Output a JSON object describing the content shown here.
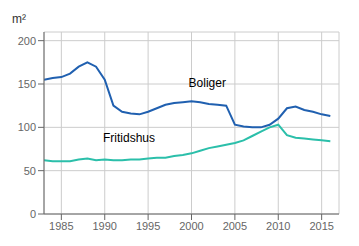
{
  "chart_data": {
    "type": "line",
    "ylabel": "m²",
    "x": [
      1983,
      1984,
      1985,
      1986,
      1987,
      1988,
      1989,
      1990,
      1991,
      1992,
      1993,
      1994,
      1995,
      1996,
      1997,
      1998,
      1999,
      2000,
      2001,
      2002,
      2003,
      2004,
      2005,
      2006,
      2007,
      2008,
      2009,
      2010,
      2011,
      2012,
      2013,
      2014,
      2015,
      2016
    ],
    "series": [
      {
        "name": "Boliger",
        "color": "#2060b0",
        "values": [
          155,
          157,
          158,
          162,
          170,
          175,
          170,
          155,
          125,
          118,
          116,
          115,
          118,
          122,
          126,
          128,
          129,
          130,
          129,
          127,
          126,
          125,
          103,
          101,
          100,
          100,
          103,
          110,
          122,
          124,
          120,
          118,
          115,
          113
        ]
      },
      {
        "name": "Fritidshus",
        "color": "#2bbfaa",
        "values": [
          62,
          61,
          61,
          61,
          63,
          64,
          62,
          63,
          62,
          62,
          63,
          63,
          64,
          65,
          65,
          67,
          68,
          70,
          73,
          76,
          78,
          80,
          82,
          85,
          90,
          95,
          100,
          103,
          91,
          88,
          87,
          86,
          85,
          84
        ]
      }
    ],
    "xlim": [
      1983,
      2017
    ],
    "xticks": [
      1985,
      1990,
      1995,
      2000,
      2005,
      2010,
      2015
    ],
    "ylim": [
      0,
      210
    ],
    "yticks": [
      0,
      50,
      100,
      150,
      200
    ],
    "grid": true
  }
}
